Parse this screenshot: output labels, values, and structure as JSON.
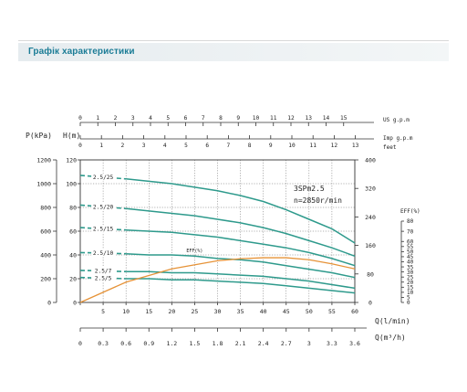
{
  "header": {
    "title": "Графік характеристики"
  },
  "chart_data": {
    "type": "line",
    "title": "",
    "annotation": [
      "3SPm2.5",
      "n=2850r/min"
    ],
    "left_axis": {
      "pressure_label": "P(kPa)",
      "head_label": "H(m)",
      "pressure_ticks": [
        0,
        200,
        400,
        600,
        800,
        1000,
        1200
      ],
      "head_ticks": [
        0,
        20,
        40,
        60,
        80,
        100,
        120
      ]
    },
    "right_axis": {
      "feet_label": "feet",
      "feet_ticks": [
        0,
        80,
        160,
        240,
        320,
        400
      ],
      "eff_label": "EFF(%)",
      "eff_ticks": [
        0,
        5,
        10,
        15,
        20,
        25,
        30,
        35,
        40,
        45,
        50,
        55,
        60,
        70,
        80
      ]
    },
    "top_axes": {
      "us_label": "US g.p.m",
      "us_ticks": [
        "0",
        "1",
        "2",
        "3",
        "4",
        "5",
        "6",
        "7",
        "8",
        "9",
        "10",
        "11",
        "12",
        "13",
        "14",
        "15"
      ],
      "imp_label": "Imp g.p.m",
      "imp_ticks": [
        "0",
        "1",
        "2",
        "3",
        "4",
        "5",
        "6",
        "7",
        "8",
        "9",
        "10",
        "11",
        "12",
        "13"
      ]
    },
    "x_axis": {
      "label": "Q(l/min)",
      "unit": "l/min",
      "range": [
        0,
        60
      ],
      "ticks": [
        "0",
        "5",
        "10",
        "15",
        "20",
        "25",
        "30",
        "35",
        "40",
        "45",
        "50",
        "55",
        "60"
      ]
    },
    "x2_axis": {
      "label": "Q(m³/h)",
      "ticks": [
        "0",
        "0.3",
        "0.6",
        "0.9",
        "1.2",
        "1.5",
        "1.8",
        "2.1",
        "2.4",
        "2.7",
        "3",
        "3.3",
        "3.6"
      ]
    },
    "ylim": [
      0,
      120
    ],
    "series": [
      {
        "name": "2.5/25",
        "x": [
          0,
          10,
          15,
          20,
          25,
          30,
          35,
          40,
          45,
          50,
          55,
          60
        ],
        "head": [
          107,
          104,
          102,
          100,
          97,
          94,
          90,
          85,
          78,
          70,
          62,
          50
        ]
      },
      {
        "name": "2.5/20",
        "x": [
          0,
          10,
          15,
          20,
          25,
          30,
          35,
          40,
          45,
          50,
          55,
          60
        ],
        "head": [
          82,
          79,
          77,
          75,
          73,
          70,
          67,
          63,
          58,
          52,
          46,
          39
        ]
      },
      {
        "name": "2.5/15",
        "x": [
          0,
          10,
          15,
          20,
          25,
          30,
          35,
          40,
          45,
          50,
          55,
          60
        ],
        "head": [
          63,
          61,
          60,
          59,
          57,
          55,
          52,
          49,
          46,
          42,
          37,
          31
        ]
      },
      {
        "name": "2.5/10",
        "x": [
          0,
          10,
          15,
          20,
          25,
          30,
          35,
          40,
          45,
          50,
          55,
          60
        ],
        "head": [
          42,
          41,
          40,
          40,
          39,
          37,
          36,
          34,
          31,
          28,
          25,
          21
        ]
      },
      {
        "name": "2.5/7",
        "x": [
          0,
          10,
          15,
          20,
          25,
          30,
          35,
          40,
          45,
          50,
          55,
          60
        ],
        "head": [
          27,
          26,
          26,
          25,
          25,
          24,
          23,
          22,
          20,
          18,
          15,
          12
        ]
      },
      {
        "name": "2.5/5",
        "x": [
          0,
          10,
          15,
          20,
          25,
          30,
          35,
          40,
          45,
          50,
          55,
          60
        ],
        "head": [
          21,
          20,
          20,
          19,
          19,
          18,
          17,
          16,
          14,
          12,
          10,
          8
        ]
      }
    ],
    "efficiency": {
      "name": "EFF(%)",
      "x": [
        0,
        10,
        20,
        30,
        35,
        40,
        45,
        50,
        55,
        60
      ],
      "eff": [
        0,
        20,
        33,
        41,
        43,
        44,
        44,
        42,
        38,
        33
      ]
    },
    "colors": {
      "curves": "#2e9a8c",
      "efficiency": "#e69338",
      "grid": "#555555",
      "axis": "#333333",
      "title": "#1b7c96"
    },
    "grid": true
  }
}
